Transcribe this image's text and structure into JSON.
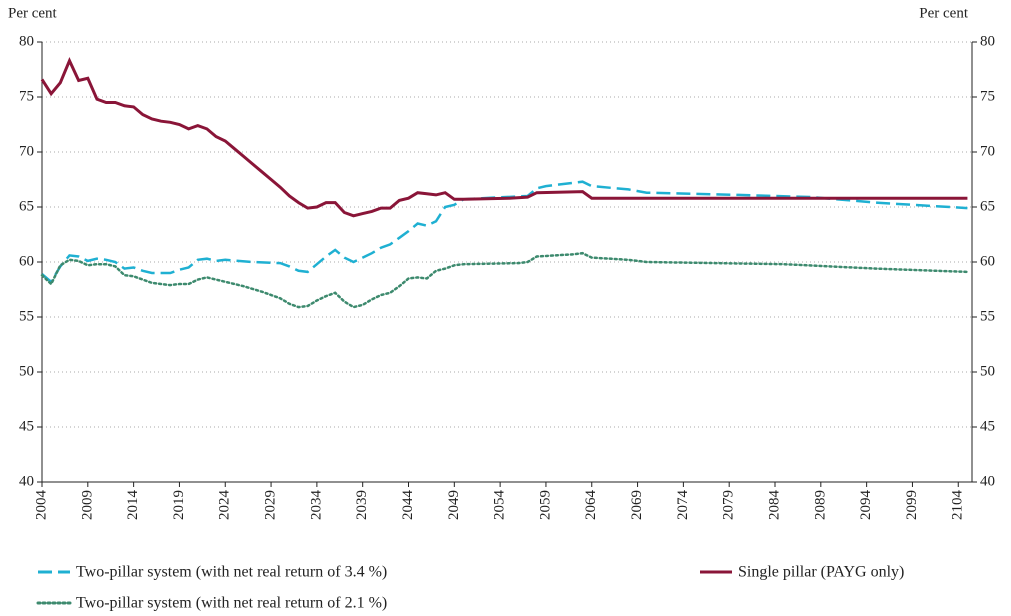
{
  "chart_data": {
    "type": "line",
    "y_label": "Per cent",
    "y2_label": "Per cent",
    "xlim": [
      2004,
      2105.5
    ],
    "xticks": [
      2004,
      2009,
      2014,
      2019,
      2024,
      2029,
      2034,
      2039,
      2044,
      2049,
      2054,
      2059,
      2064,
      2069,
      2074,
      2079,
      2084,
      2089,
      2094,
      2099,
      2104
    ],
    "ylim": [
      40,
      80
    ],
    "yticks": [
      40,
      45,
      50,
      55,
      60,
      65,
      70,
      75,
      80
    ],
    "y2lim": [
      40,
      80
    ],
    "y2ticks": [
      40,
      45,
      50,
      55,
      60,
      65,
      70,
      75,
      80
    ],
    "grid": true,
    "series": [
      {
        "name": "Two-pillar system (with net real return of 3.4 %)",
        "color": "#1fb0d2",
        "style": "dashed",
        "x": [
          2004,
          2005,
          2006,
          2007,
          2008,
          2009,
          2010,
          2011,
          2012,
          2013,
          2014,
          2015,
          2016,
          2017,
          2018,
          2019,
          2020,
          2021,
          2022,
          2023,
          2024,
          2027,
          2030,
          2031,
          2032,
          2033,
          2034,
          2035,
          2036,
          2037,
          2038,
          2039,
          2040,
          2041,
          2042,
          2043,
          2044,
          2045,
          2046,
          2047,
          2048,
          2049,
          2050,
          2052,
          2057,
          2058,
          2059,
          2062,
          2063,
          2064,
          2068,
          2070,
          2080,
          2088,
          2095,
          2105
        ],
        "values": [
          58.9,
          58.2,
          59.6,
          60.6,
          60.5,
          60.1,
          60.3,
          60.2,
          60.0,
          59.4,
          59.5,
          59.2,
          59.0,
          59.0,
          59.0,
          59.3,
          59.5,
          60.2,
          60.3,
          60.1,
          60.2,
          60.0,
          59.9,
          59.6,
          59.2,
          59.1,
          59.8,
          60.5,
          61.1,
          60.4,
          60.0,
          60.4,
          60.8,
          61.3,
          61.6,
          62.2,
          62.8,
          63.5,
          63.3,
          63.7,
          65.0,
          65.2,
          65.7,
          65.8,
          66.0,
          66.7,
          66.9,
          67.2,
          67.3,
          66.9,
          66.6,
          66.3,
          66.1,
          65.9,
          65.4,
          64.9
        ]
      },
      {
        "name": "Single pillar (PAYG only)",
        "color": "#8a1538",
        "style": "solid",
        "x": [
          2004,
          2005,
          2006,
          2007,
          2008,
          2009,
          2010,
          2011,
          2012,
          2013,
          2014,
          2015,
          2016,
          2017,
          2018,
          2019,
          2020,
          2021,
          2022,
          2023,
          2024,
          2025,
          2026,
          2027,
          2028,
          2029,
          2030,
          2031,
          2032,
          2033,
          2034,
          2035,
          2036,
          2037,
          2038,
          2039,
          2040,
          2041,
          2042,
          2043,
          2044,
          2045,
          2046,
          2047,
          2048,
          2049,
          2050,
          2055,
          2057,
          2058,
          2063,
          2064,
          2105
        ],
        "values": [
          76.6,
          75.3,
          76.3,
          78.3,
          76.5,
          76.7,
          74.8,
          74.5,
          74.5,
          74.2,
          74.1,
          73.4,
          73.0,
          72.8,
          72.7,
          72.5,
          72.1,
          72.4,
          72.1,
          71.4,
          71.0,
          70.3,
          69.6,
          68.9,
          68.2,
          67.5,
          66.8,
          66.0,
          65.4,
          64.9,
          65.0,
          65.4,
          65.4,
          64.5,
          64.2,
          64.4,
          64.6,
          64.9,
          64.9,
          65.6,
          65.8,
          66.3,
          66.2,
          66.1,
          66.3,
          65.7,
          65.7,
          65.8,
          65.9,
          66.3,
          66.4,
          65.8,
          65.8
        ]
      },
      {
        "name": "Two-pillar system (with net real return of 2.1 %)",
        "color": "#3d8a6e",
        "style": "dotted",
        "x": [
          2004,
          2005,
          2006,
          2007,
          2008,
          2009,
          2010,
          2011,
          2012,
          2013,
          2014,
          2015,
          2016,
          2017,
          2018,
          2019,
          2020,
          2021,
          2022,
          2023,
          2024,
          2026,
          2028,
          2030,
          2031,
          2032,
          2033,
          2034,
          2035,
          2036,
          2037,
          2038,
          2039,
          2040,
          2041,
          2042,
          2043,
          2044,
          2045,
          2046,
          2047,
          2048,
          2049,
          2050,
          2056,
          2057,
          2058,
          2062,
          2063,
          2064,
          2068,
          2070,
          2085,
          2095,
          2105
        ],
        "values": [
          58.8,
          58.0,
          59.7,
          60.2,
          60.1,
          59.7,
          59.8,
          59.8,
          59.6,
          58.8,
          58.7,
          58.4,
          58.1,
          58.0,
          57.9,
          58.0,
          58.0,
          58.4,
          58.6,
          58.4,
          58.2,
          57.8,
          57.3,
          56.7,
          56.2,
          55.9,
          56.0,
          56.5,
          56.9,
          57.2,
          56.4,
          55.9,
          56.1,
          56.6,
          57.0,
          57.2,
          57.8,
          58.5,
          58.6,
          58.5,
          59.2,
          59.4,
          59.7,
          59.8,
          59.9,
          60.0,
          60.5,
          60.7,
          60.8,
          60.4,
          60.2,
          60.0,
          59.8,
          59.4,
          59.1
        ]
      }
    ]
  }
}
